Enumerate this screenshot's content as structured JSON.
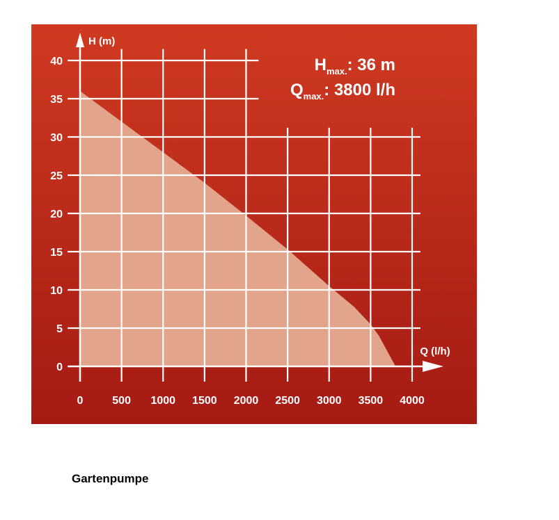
{
  "chart_data": {
    "type": "area",
    "xlabel": "Q (l/h)",
    "ylabel": "H (m)",
    "xlim": [
      0,
      4000
    ],
    "ylim": [
      0,
      40
    ],
    "x_ticks": [
      "0",
      "500",
      "1000",
      "1500",
      "2000",
      "2500",
      "3000",
      "3500",
      "4000"
    ],
    "y_ticks": [
      "0",
      "5",
      "10",
      "15",
      "20",
      "25",
      "30",
      "35",
      "40"
    ],
    "grid": true,
    "series": [
      {
        "x": [
          0,
          500,
          1000,
          1500,
          2000,
          2500,
          3000,
          3300,
          3500,
          3600,
          3700,
          3800
        ],
        "y": [
          36,
          32,
          28,
          24,
          19.7,
          15.3,
          10.5,
          7.8,
          5.5,
          4,
          2,
          0
        ]
      }
    ],
    "annotations": [
      {
        "main": "H",
        "sub": "max.",
        "value": ": 36 m"
      },
      {
        "main": "Q",
        "sub": "max.",
        "value": ": 3800 l/h"
      }
    ]
  },
  "colors": {
    "background_top": "#cf3a21",
    "background_bottom": "#a51a14",
    "area_fill": "#e3a48c",
    "grid": "#ffffff"
  },
  "caption": "Gartenpumpe"
}
